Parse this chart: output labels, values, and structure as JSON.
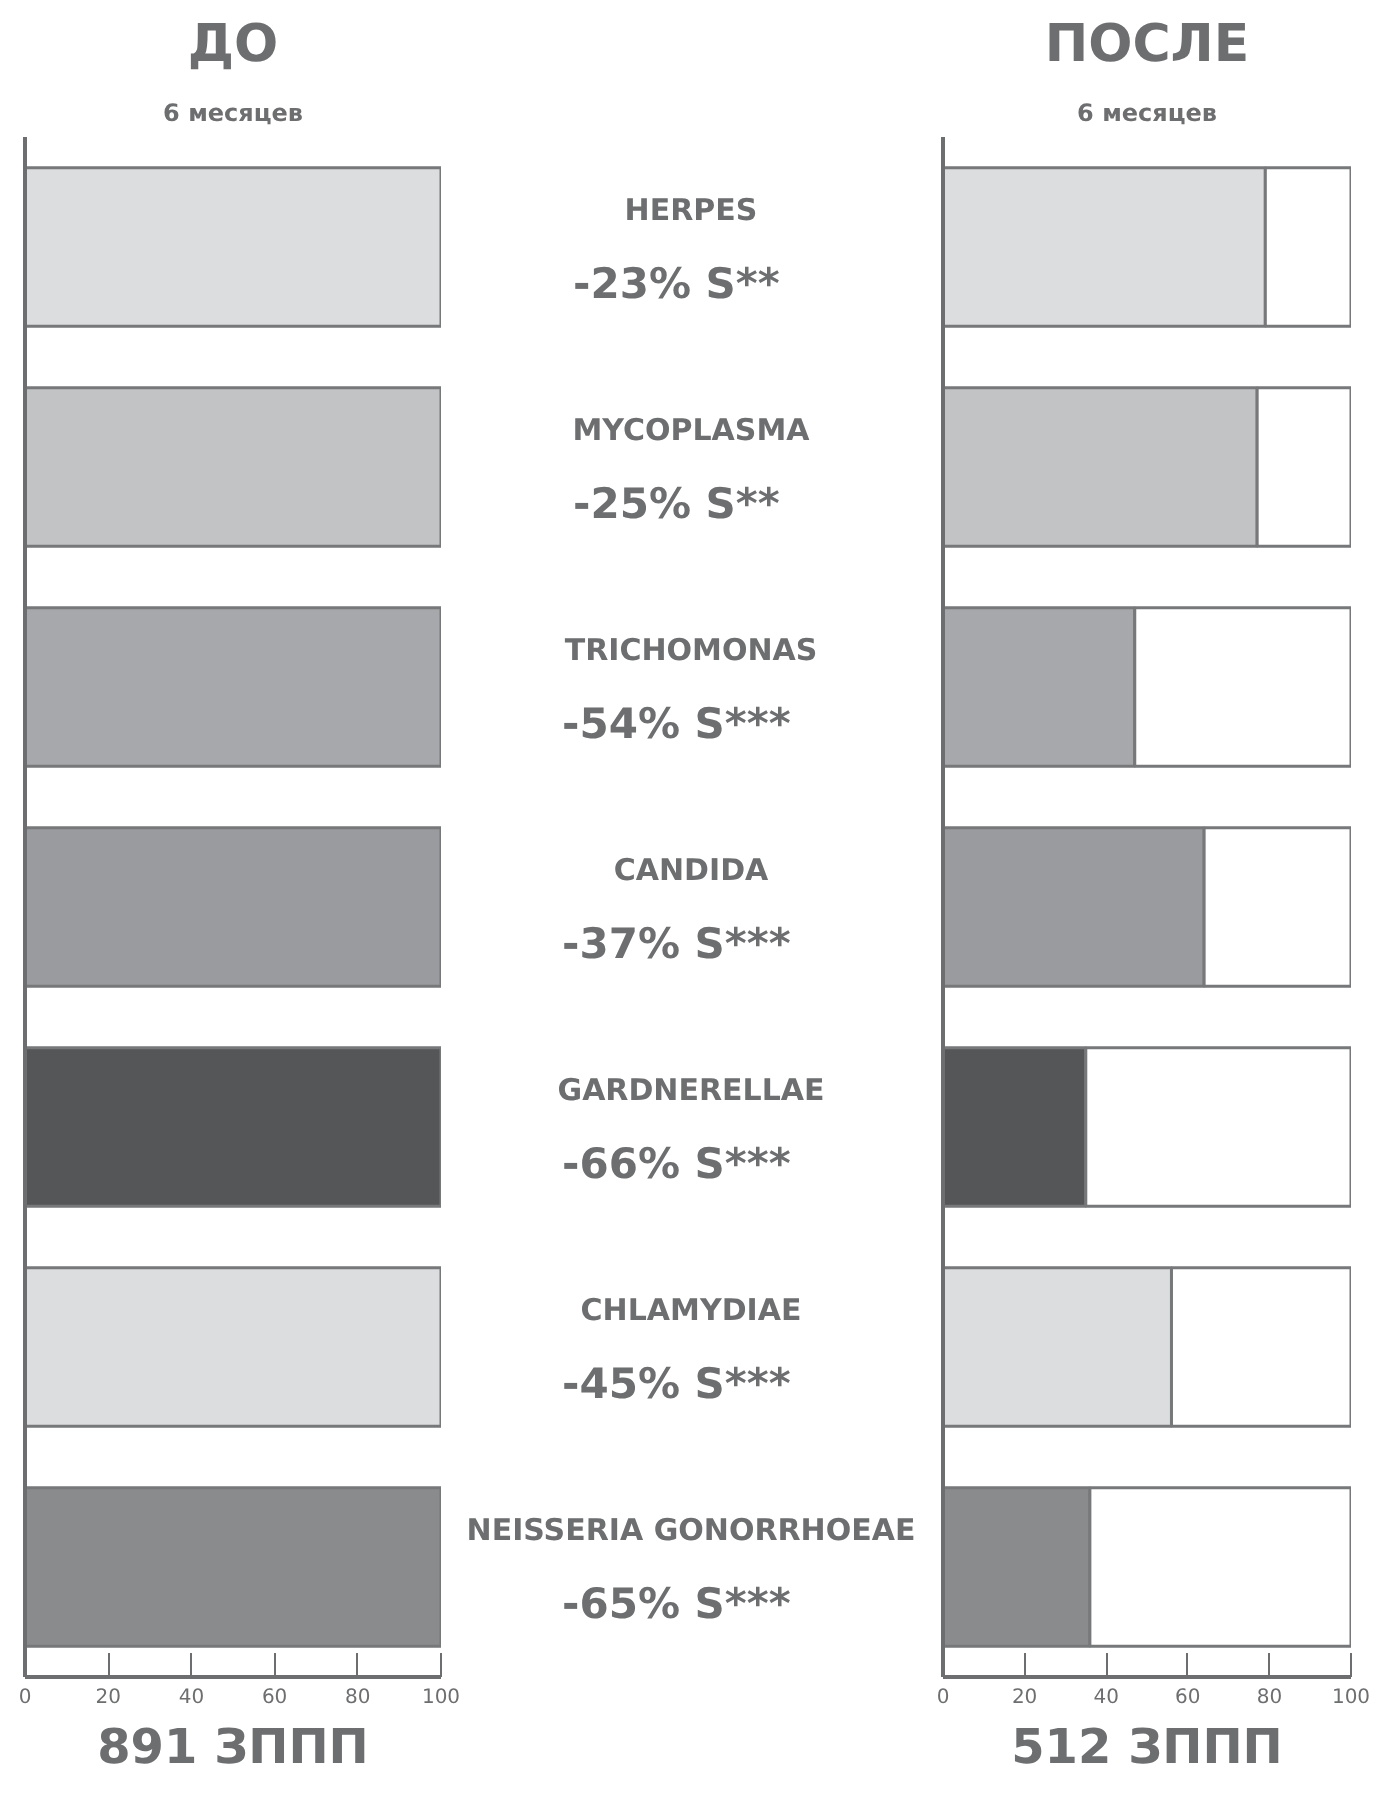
{
  "chart_data": [
    {
      "type": "bar",
      "orientation": "horizontal",
      "title": "ДО",
      "subtitle": "6 месяцев",
      "xlabel": "891 ЗППП",
      "categories": [
        "HERPES",
        "MYCOPLASMA",
        "TRICHOMONAS",
        "CANDIDA",
        "GARDNERELLAE",
        "CHLAMYDIAE",
        "NEISSERIA GONORRHOEAE"
      ],
      "values": [
        100,
        100,
        100,
        100,
        100,
        100,
        100
      ],
      "colors": [
        "#dcdddf",
        "#c2c3c5",
        "#a7a8ab",
        "#9a9b9e",
        "#555658",
        "#dcdddf",
        "#8a8b8d"
      ],
      "xlim": [
        0,
        100
      ],
      "xticks": [
        0,
        20,
        40,
        60,
        80,
        100
      ],
      "tick_labels": "x",
      "grid": false
    },
    {
      "type": "bar",
      "orientation": "horizontal",
      "stacked": true,
      "title": "ПОСЛЕ",
      "subtitle": "6 месяцев",
      "xlabel": "512 ЗППП",
      "categories": [
        null,
        null,
        null,
        null,
        null,
        null,
        null
      ],
      "series": [
        {
          "colors": [
            "#dcdddf",
            "#c2c3c5",
            "#a7a8ab",
            "#9a9b9e",
            "#555658",
            "#dcdddf",
            "#8a8b8d"
          ],
          "values": [
            79,
            77,
            47,
            64,
            35,
            56,
            36
          ]
        },
        {
          "color": "#ffffff",
          "values": [
            21,
            23,
            53,
            36,
            65,
            44,
            64
          ]
        }
      ],
      "annotations": [
        "-23%   S**",
        "-25%   S**",
        "-54%   S***",
        "-37%   S***",
        "-66%   S***",
        "-45%   S***",
        "-65%   S***"
      ],
      "xlim": [
        0,
        100
      ],
      "xticks": [
        0,
        20,
        40,
        60,
        80,
        100
      ],
      "tick_labels": "x",
      "grid": false
    }
  ]
}
